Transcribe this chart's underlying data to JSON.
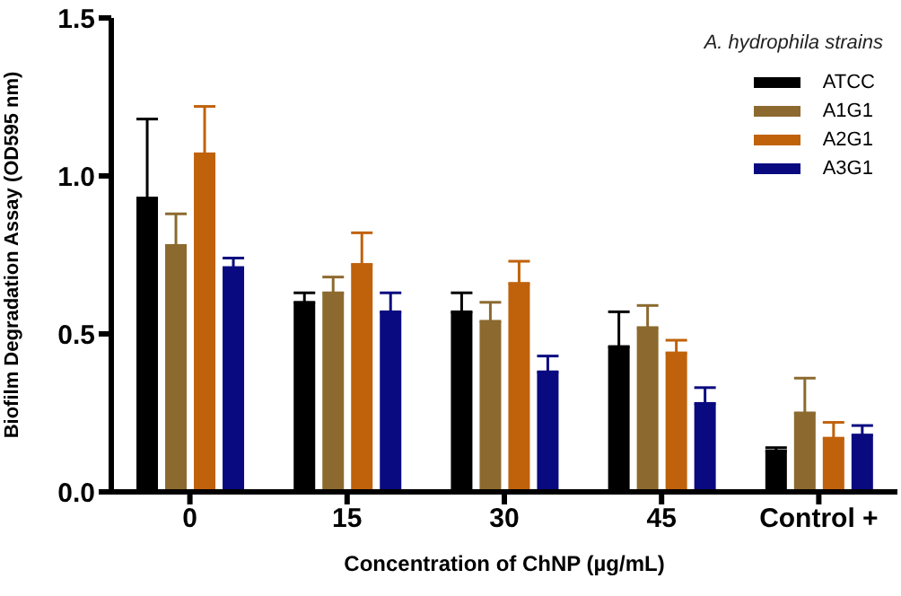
{
  "chart_data": {
    "type": "bar",
    "xlabel": "Concentration of ChNP (µg/mL)",
    "ylabel": "Biofilm Degradation Assay (OD595 nm)",
    "legend_title": "A. hydrophila strains",
    "legend": "top right",
    "categories": [
      "0",
      "15",
      "30",
      "45",
      "Control +"
    ],
    "ylim": [
      0,
      1.5
    ],
    "yticks": [
      {
        "value": 0,
        "label": "0.0"
      },
      {
        "value": 0.5,
        "label": "0.5"
      },
      {
        "value": 1,
        "label": "1.0"
      },
      {
        "value": 1.5,
        "label": "1.5"
      }
    ],
    "series": [
      {
        "name": "ATCC",
        "color": "#000000",
        "values": [
          0.93,
          0.6,
          0.57,
          0.46,
          0.13
        ],
        "errors": [
          [
            0.93,
            1.18
          ],
          [
            0.6,
            0.63
          ],
          [
            0.57,
            0.63
          ],
          [
            0.46,
            0.57
          ],
          [
            0.13,
            0.14
          ]
        ]
      },
      {
        "name": "A1G1",
        "color": "#8c6a2f",
        "values": [
          0.78,
          0.63,
          0.54,
          0.52,
          0.25
        ],
        "errors": [
          [
            0.78,
            0.88
          ],
          [
            0.63,
            0.68
          ],
          [
            0.54,
            0.6
          ],
          [
            0.52,
            0.59
          ],
          [
            0.25,
            0.36
          ]
        ]
      },
      {
        "name": "A2G1",
        "color": "#c0620c",
        "values": [
          1.07,
          0.72,
          0.66,
          0.44,
          0.17
        ],
        "errors": [
          [
            1.07,
            1.22
          ],
          [
            0.72,
            0.82
          ],
          [
            0.66,
            0.73
          ],
          [
            0.44,
            0.48
          ],
          [
            0.17,
            0.22
          ]
        ]
      },
      {
        "name": "A3G1",
        "color": "#0a0a80",
        "values": [
          0.71,
          0.57,
          0.38,
          0.28,
          0.18
        ],
        "errors": [
          [
            0.71,
            0.74
          ],
          [
            0.57,
            0.63
          ],
          [
            0.38,
            0.43
          ],
          [
            0.28,
            0.33
          ],
          [
            0.18,
            0.21
          ]
        ]
      }
    ]
  }
}
